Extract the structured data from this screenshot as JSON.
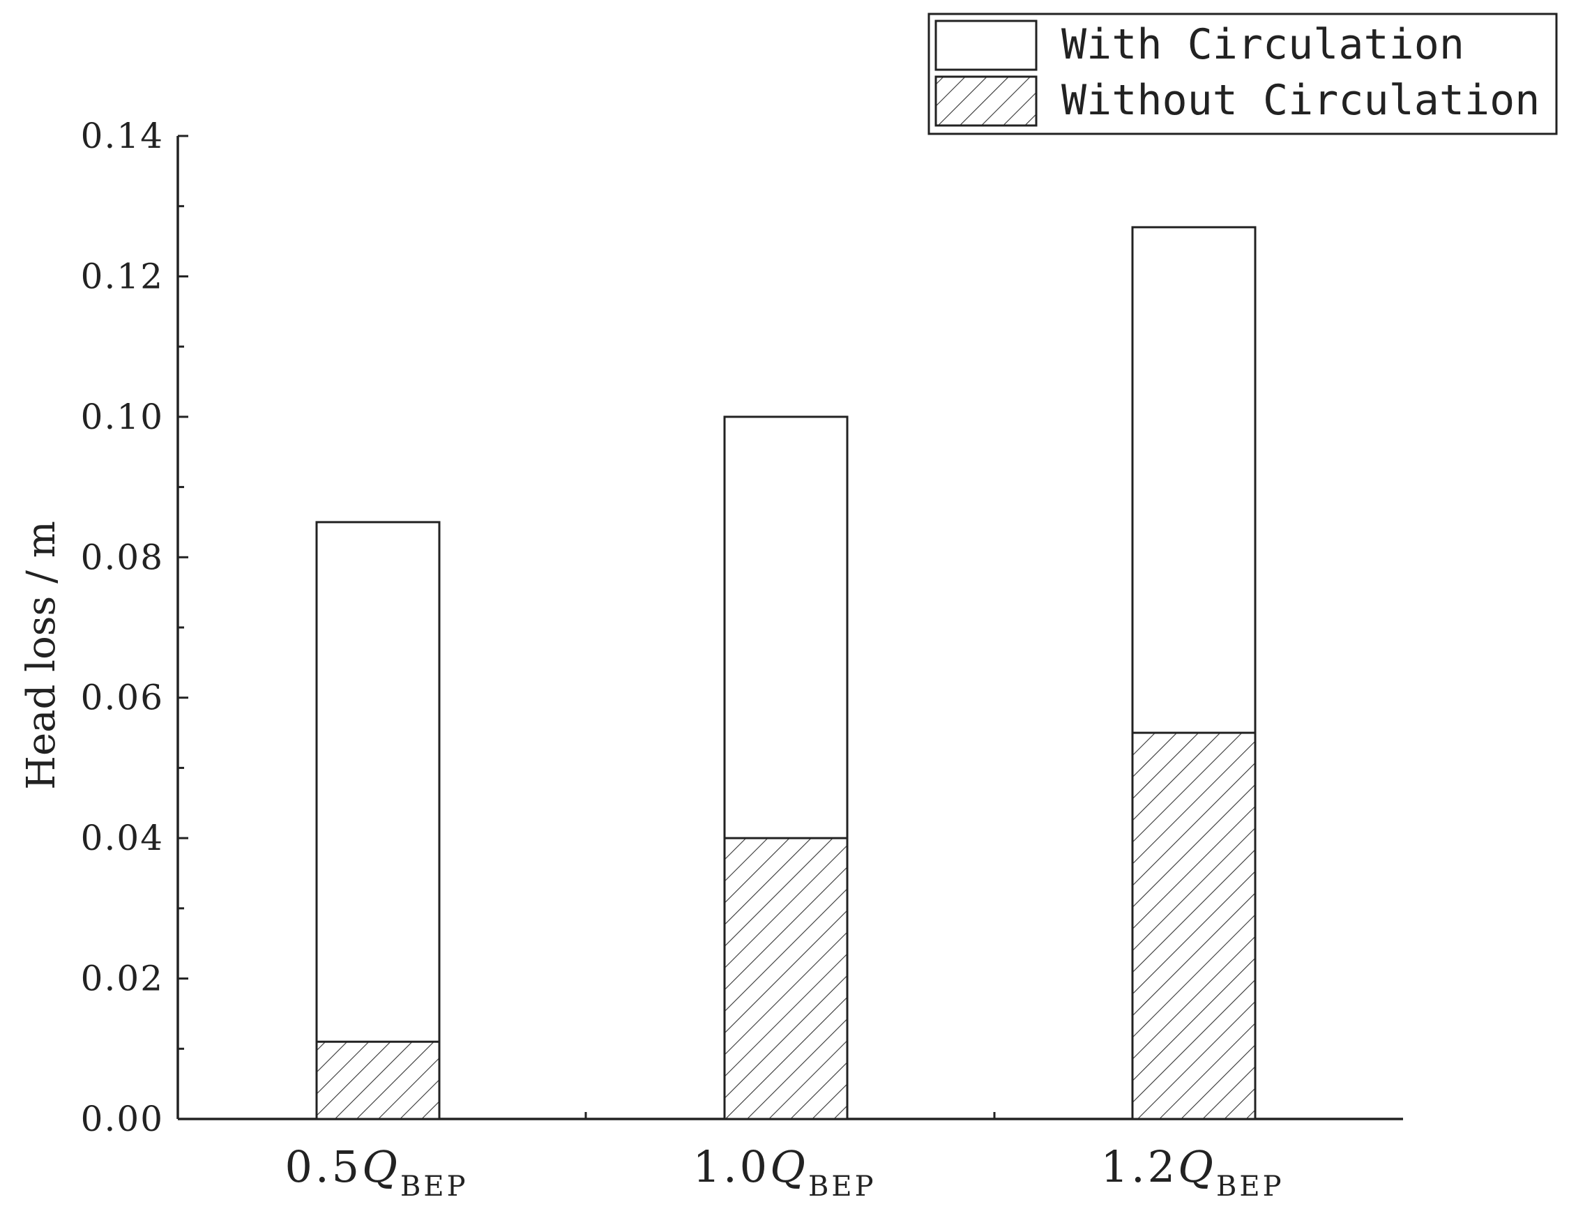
{
  "chart_data": {
    "type": "bar",
    "categories": [
      "0.5Q_BEP",
      "1.0Q_BEP",
      "1.2Q_BEP"
    ],
    "category_labels": [
      {
        "main": "0.5",
        "q": "Q",
        "sub": "BEP"
      },
      {
        "main": "1.0",
        "q": "Q",
        "sub": "BEP"
      },
      {
        "main": "1.2",
        "q": "Q",
        "sub": "BEP"
      }
    ],
    "series": [
      {
        "name": "With Circulation",
        "values": [
          0.085,
          0.1,
          0.127
        ],
        "fill": "white"
      },
      {
        "name": "Without Circulation",
        "values": [
          0.011,
          0.04,
          0.055
        ],
        "fill": "hatched"
      }
    ],
    "ylabel": "Head loss / m",
    "xlabel": "",
    "ylim": [
      0,
      0.14
    ],
    "yticks": [
      "0.00",
      "0.02",
      "0.04",
      "0.06",
      "0.08",
      "0.10",
      "0.12",
      "0.14"
    ],
    "legend_position": "top-right",
    "grid": false,
    "colors": {
      "stroke": "#222222",
      "background": "#ffffff"
    }
  }
}
